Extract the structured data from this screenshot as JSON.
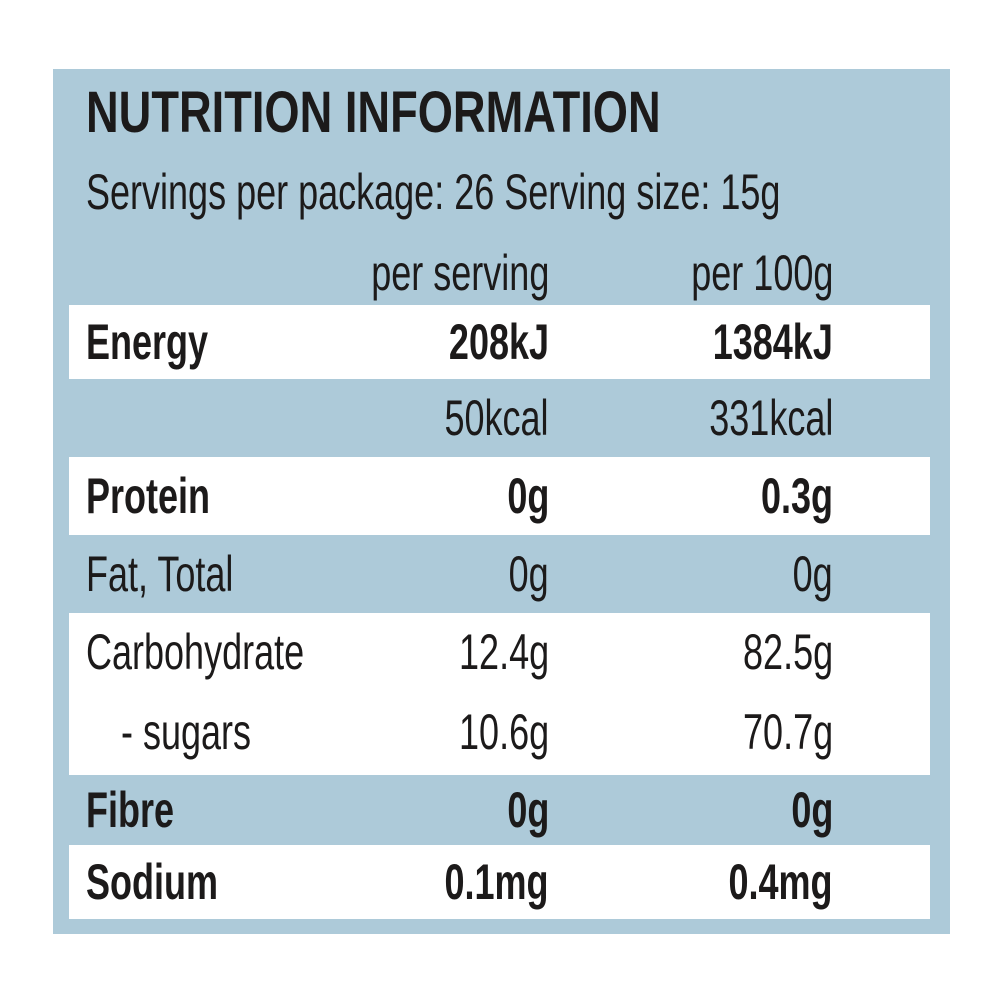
{
  "title": "NUTRITION INFORMATION",
  "servings_line": "Servings per package: 26 Serving size: 15g",
  "columns": {
    "per_serving": "per serving",
    "per_100g": "per 100g"
  },
  "rows": [
    {
      "label": "Energy",
      "per_serving": "208kJ",
      "per_100g": "1384kJ",
      "bold": true,
      "highlight": true
    },
    {
      "label": "",
      "per_serving": "50kcal",
      "per_100g": "331kcal",
      "bold": false,
      "highlight": false
    },
    {
      "label": "Protein",
      "per_serving": "0g",
      "per_100g": "0.3g",
      "bold": true,
      "highlight": true
    },
    {
      "label": "Fat, Total",
      "per_serving": "0g",
      "per_100g": "0g",
      "bold": false,
      "highlight": false
    },
    {
      "label": "Carbohydrate",
      "per_serving": "12.4g",
      "per_100g": "82.5g",
      "bold": false,
      "highlight": true
    },
    {
      "label": "- sugars",
      "per_serving": "10.6g",
      "per_100g": "70.7g",
      "bold": false,
      "highlight": true
    },
    {
      "label": "Fibre",
      "per_serving": "0g",
      "per_100g": "0g",
      "bold": true,
      "highlight": false
    },
    {
      "label": "Sodium",
      "per_serving": "0.1mg",
      "per_100g": "0.4mg",
      "bold": true,
      "highlight": true
    }
  ],
  "colors": {
    "panel_background": "#adcad9",
    "row_highlight": "#ffffff",
    "text": "#1c1a1a"
  }
}
